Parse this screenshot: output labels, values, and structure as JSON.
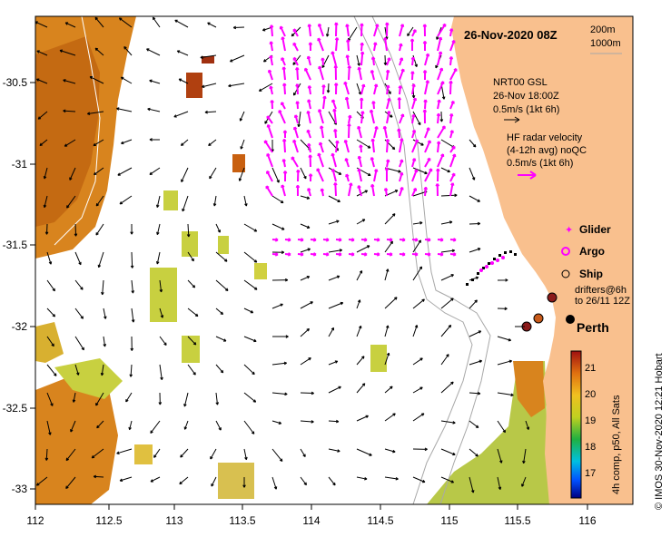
{
  "map": {
    "date_label": "26-Nov-2020 08Z",
    "isobath_labels": [
      "200m",
      "1000m"
    ],
    "x_ticks": [
      "112",
      "112.5",
      "113",
      "113.5",
      "114",
      "114.5",
      "115",
      "115.5",
      "116"
    ],
    "y_ticks": [
      "-30.5",
      "-31",
      "-31.5",
      "-32",
      "-32.5",
      "-33"
    ],
    "legend": {
      "model_title": "NRT00 GSL",
      "model_time": "26-Nov 18:00Z",
      "model_scale": "0.5m/s (1kt 6h)",
      "radar_line1": "HF radar velocity",
      "radar_line2": "(4-12h avg) noQC",
      "radar_scale": "0.5m/s (1kt 6h)",
      "glider": "Glider",
      "argo": "Argo",
      "ship": "Ship",
      "drifters_line1": "drifters@6h",
      "drifters_line2": "to 26/11 12Z"
    },
    "place_label": "Perth",
    "colorbar": {
      "ticks": [
        "21",
        "20",
        "19",
        "18",
        "17"
      ],
      "caption": "4h comp, p50, All Sats"
    },
    "credit": "© IMOS 30-Nov-2020 12:21 Hobart",
    "colors": {
      "land": "#f9c08e",
      "sst_warm": "#d8841e",
      "sst_mid": "#c8d040",
      "radar_arrow": "#ff00ff",
      "model_arrow": "#000000",
      "isobath": "#a8a8a8"
    }
  }
}
